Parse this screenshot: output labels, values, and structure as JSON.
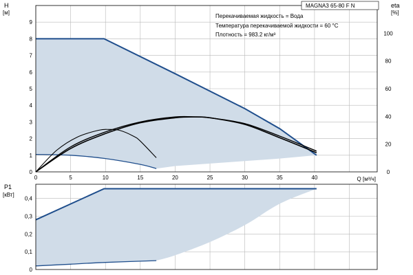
{
  "chart_data": [
    {
      "type": "area",
      "title": "MAGNA3 65-80 F N",
      "ylabel": "H",
      "yunit": "[м]",
      "xlabel": "Q [м³/ч]",
      "y2label": "eta",
      "y2unit": "[%]",
      "xlim": [
        0,
        49
      ],
      "ylim": [
        0,
        10
      ],
      "y2lim": [
        0,
        120
      ],
      "xticks": [
        "0",
        "5",
        "10",
        "15",
        "20",
        "25",
        "30",
        "35",
        "40"
      ],
      "yticks": [
        "0",
        "1",
        "2",
        "3",
        "4",
        "5",
        "6",
        "7",
        "8",
        "9"
      ],
      "y2ticks": [
        "0",
        "20",
        "40",
        "60",
        "80",
        "100"
      ],
      "grid": true,
      "annotations": [
        "Перекачиваемая жидкость = Вода",
        "Температура перекачиваемой жидкости = 60 °C",
        "Плотность = 983.2 кг/м³"
      ],
      "colors": {
        "area": "#d0dce8",
        "curve": "#1f4e8c",
        "eta": "#000000"
      },
      "series": [
        {
          "role": "operating-area",
          "x": [
            0,
            9.8,
            20,
            30,
            40.3,
            40.3,
            35,
            30,
            25,
            20,
            17.3
          ],
          "y": [
            8,
            8,
            5.9,
            3.8,
            1.0,
            1.0,
            0.8,
            0.65,
            0.5,
            0.35,
            0.2
          ]
        },
        {
          "role": "max-curve",
          "x": [
            0,
            9.8,
            20,
            30,
            35,
            40.3
          ],
          "y": [
            8,
            8,
            5.9,
            3.8,
            2.6,
            1.0
          ]
        },
        {
          "role": "min-curve",
          "x": [
            0,
            5,
            10,
            15,
            17.3
          ],
          "y": [
            1.05,
            1.0,
            0.8,
            0.45,
            0.2
          ]
        },
        {
          "role": "eta-max",
          "axis": "y2",
          "x": [
            0,
            5,
            10,
            15,
            20,
            23,
            25,
            30,
            35,
            40.3
          ],
          "y": [
            0,
            16.8,
            27.6,
            35.4,
            39.0,
            39.6,
            39.0,
            34.2,
            24.6,
            13.8
          ]
        },
        {
          "role": "eta-max-second",
          "axis": "y2",
          "x": [
            0,
            5,
            10,
            15,
            20,
            23,
            25,
            30,
            35,
            40.3
          ],
          "y": [
            0,
            18,
            28.8,
            36.0,
            39.6,
            39.6,
            39.0,
            34.8,
            25.8,
            15.0
          ]
        },
        {
          "role": "eta-min",
          "axis": "y2",
          "x": [
            0,
            3,
            6,
            9,
            10.5,
            12,
            14,
            15,
            17.3
          ],
          "y": [
            0,
            15.6,
            25.2,
            30.0,
            30.6,
            30.0,
            25.8,
            22.2,
            10.2
          ]
        }
      ]
    },
    {
      "type": "area",
      "ylabel": "P1",
      "yunit": "[кВт]",
      "xlim": [
        0,
        49
      ],
      "ylim": [
        0,
        0.48
      ],
      "yticks": [
        "0",
        "0,1",
        "0,2",
        "0,3",
        "0,4"
      ],
      "grid": true,
      "colors": {
        "area": "#d0dce8",
        "curve": "#1f4e8c"
      },
      "series": [
        {
          "role": "operating-area",
          "x": [
            0,
            9.8,
            40.3,
            35,
            30,
            25,
            20,
            17.3,
            10,
            0
          ],
          "y": [
            0.28,
            0.455,
            0.455,
            0.37,
            0.25,
            0.155,
            0.08,
            0.05,
            0.045,
            0.02
          ]
        },
        {
          "role": "max-power",
          "x": [
            0,
            9.8,
            40.3
          ],
          "y": [
            0.28,
            0.455,
            0.455
          ]
        },
        {
          "role": "min-power",
          "x": [
            0,
            5,
            10,
            17.3
          ],
          "y": [
            0.02,
            0.03,
            0.04,
            0.05
          ]
        }
      ]
    }
  ]
}
